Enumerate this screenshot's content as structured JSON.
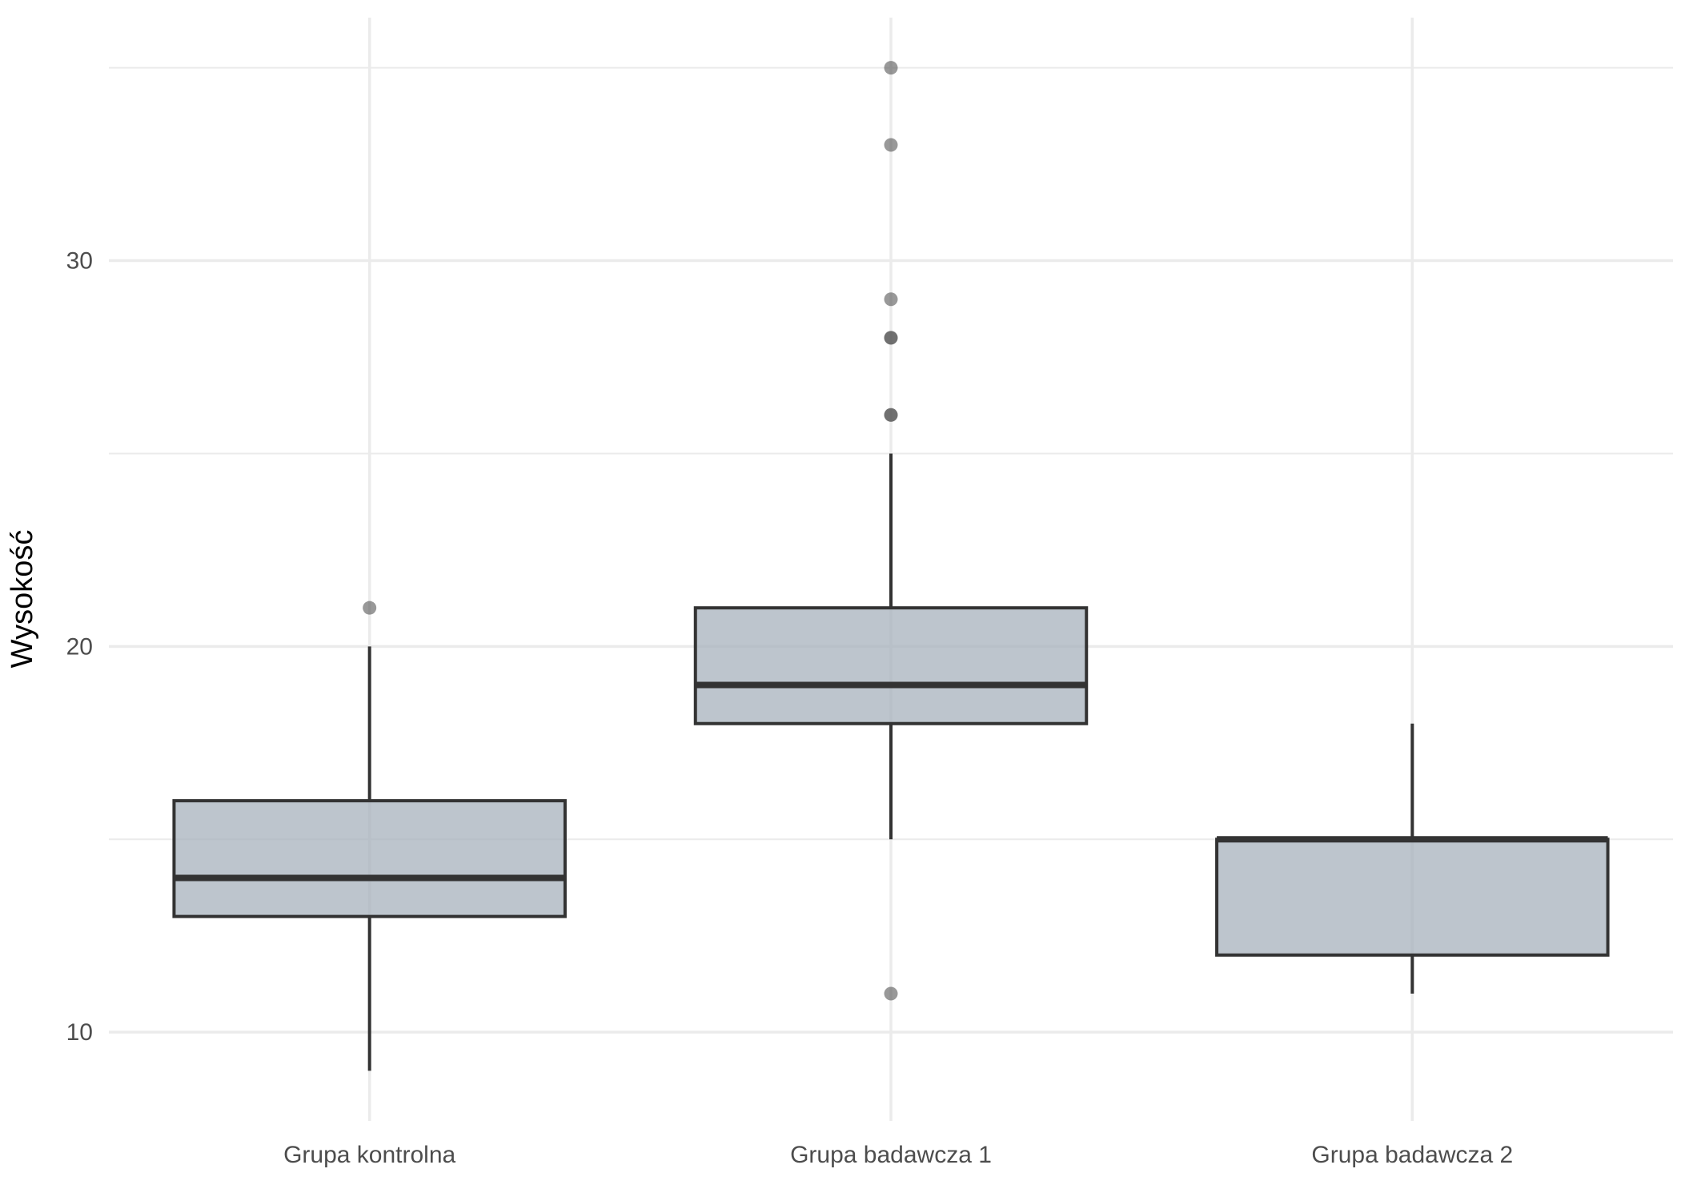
{
  "chart_data": {
    "type": "boxplot",
    "title": "",
    "xlabel": "",
    "ylabel": "Wysokość",
    "ylim": [
      7.7,
      36.3
    ],
    "y_ticks": [
      10,
      20,
      30
    ],
    "y_minor_ticks": [
      15,
      25,
      35
    ],
    "grid": true,
    "legend": "none",
    "categories": [
      "Grupa kontrolna",
      "Grupa badawcza 1",
      "Grupa badawcza 2"
    ],
    "boxes": [
      {
        "category": "Grupa kontrolna",
        "whisker_low": 9,
        "q1": 13,
        "median": 14,
        "q3": 16,
        "whisker_high": 20,
        "outliers": [
          21
        ]
      },
      {
        "category": "Grupa badawcza 1",
        "whisker_low": 15,
        "q1": 18,
        "median": 19,
        "q3": 21,
        "whisker_high": 25,
        "outliers": [
          11,
          26,
          26,
          28,
          28,
          29,
          33,
          35
        ]
      },
      {
        "category": "Grupa badawcza 2",
        "whisker_low": 11,
        "q1": 12,
        "median": 15,
        "q3": 15,
        "whisker_high": 18,
        "outliers": []
      }
    ],
    "colors": {
      "box_fill": "#a4afba",
      "box_stroke": "#333333",
      "outlier": "#555555",
      "grid": "#ebebeb"
    }
  }
}
